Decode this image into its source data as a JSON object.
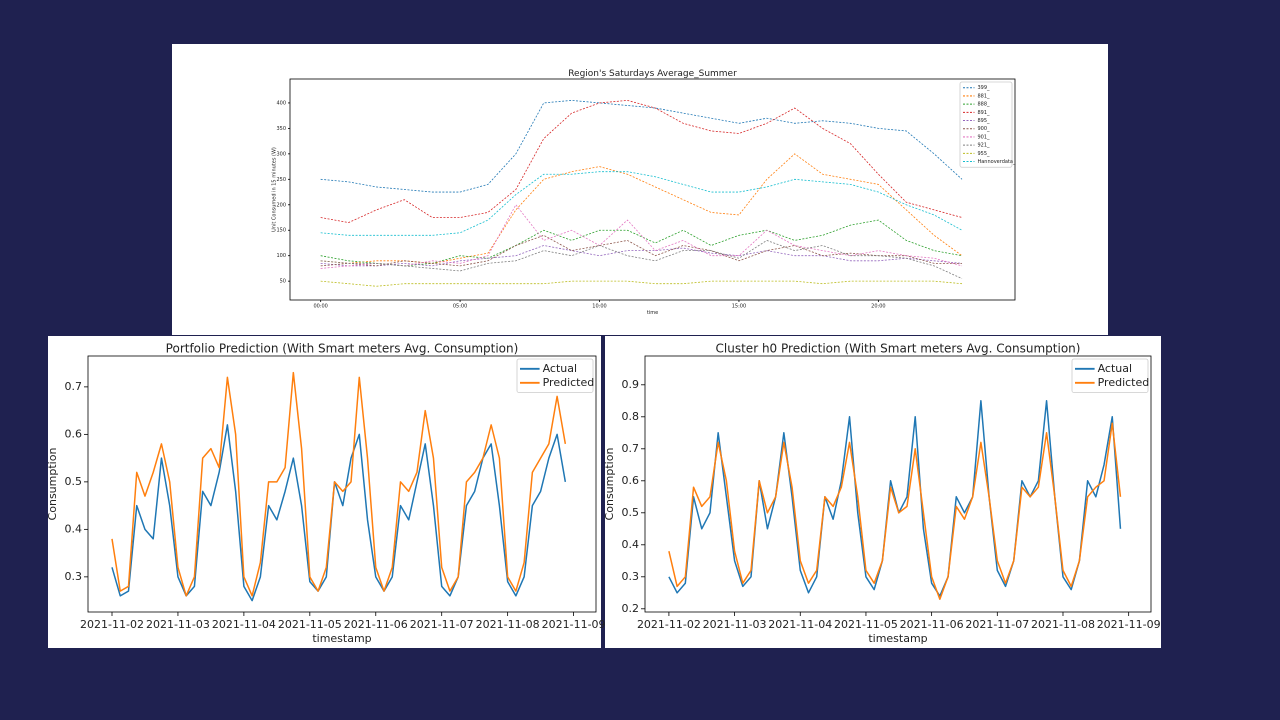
{
  "chart_data": [
    {
      "type": "line",
      "title": "Region's Saturdays Average_Summer",
      "xlabel": "time",
      "ylabel": "Unit Consumed in 15 minutes (W)",
      "linestyle": "dashed",
      "grid": false,
      "legend": "upper right",
      "x": [
        0,
        1,
        2,
        3,
        4,
        5,
        6,
        7,
        8,
        9,
        10,
        11,
        12,
        13,
        14,
        15,
        16,
        17,
        18,
        19,
        20,
        21,
        22,
        23
      ],
      "xlim": [
        -1.1,
        24.9
      ],
      "xticks": [
        {
          "value": 0,
          "label": "00:00"
        },
        {
          "value": 5,
          "label": "05:00"
        },
        {
          "value": 10,
          "label": "10:00"
        },
        {
          "value": 15,
          "label": "15:00"
        },
        {
          "value": 20,
          "label": "20:00"
        }
      ],
      "ylim": [
        13,
        447
      ],
      "yticks": [
        50,
        100,
        150,
        200,
        250,
        300,
        350,
        400
      ],
      "series": [
        {
          "name": "399_",
          "color": "#1f77b4",
          "values": [
            250,
            245,
            235,
            230,
            225,
            225,
            240,
            300,
            400,
            405,
            400,
            395,
            390,
            380,
            370,
            360,
            370,
            360,
            365,
            360,
            350,
            345,
            300,
            250
          ]
        },
        {
          "name": "881_",
          "color": "#ff7f0e",
          "values": [
            90,
            85,
            90,
            90,
            85,
            95,
            105,
            190,
            250,
            265,
            275,
            260,
            235,
            210,
            185,
            180,
            250,
            300,
            260,
            250,
            240,
            190,
            140,
            100
          ]
        },
        {
          "name": "888_",
          "color": "#2ca02c",
          "values": [
            100,
            90,
            85,
            80,
            85,
            100,
            95,
            120,
            150,
            130,
            150,
            150,
            125,
            150,
            120,
            140,
            150,
            130,
            140,
            160,
            170,
            130,
            110,
            100
          ]
        },
        {
          "name": "891_",
          "color": "#d62728",
          "values": [
            175,
            165,
            190,
            210,
            175,
            175,
            185,
            230,
            330,
            380,
            400,
            405,
            390,
            360,
            345,
            340,
            360,
            390,
            350,
            320,
            260,
            205,
            190,
            175
          ]
        },
        {
          "name": "895_",
          "color": "#9467bd",
          "values": [
            85,
            80,
            80,
            85,
            80,
            90,
            95,
            100,
            120,
            110,
            100,
            110,
            110,
            115,
            105,
            100,
            110,
            100,
            100,
            90,
            90,
            95,
            90,
            85
          ]
        },
        {
          "name": "900_",
          "color": "#8c564b",
          "values": [
            80,
            85,
            80,
            90,
            85,
            80,
            90,
            120,
            140,
            110,
            120,
            130,
            100,
            120,
            110,
            90,
            110,
            120,
            100,
            105,
            100,
            100,
            85,
            85
          ]
        },
        {
          "name": "901_",
          "color": "#e377c2",
          "values": [
            75,
            80,
            85,
            80,
            90,
            85,
            100,
            200,
            130,
            150,
            120,
            170,
            110,
            130,
            100,
            100,
            150,
            120,
            110,
            100,
            110,
            100,
            95,
            80
          ]
        },
        {
          "name": "921_",
          "color": "#7f7f7f",
          "values": [
            90,
            85,
            85,
            80,
            75,
            70,
            85,
            90,
            110,
            100,
            120,
            100,
            90,
            110,
            110,
            95,
            130,
            110,
            120,
            100,
            100,
            95,
            80,
            55
          ]
        },
        {
          "name": "955_",
          "color": "#bcbd22",
          "values": [
            50,
            45,
            40,
            45,
            45,
            45,
            45,
            45,
            45,
            50,
            50,
            50,
            45,
            45,
            50,
            50,
            50,
            50,
            45,
            50,
            50,
            50,
            50,
            45
          ]
        },
        {
          "name": "Hannoverdata_",
          "color": "#17becf",
          "values": [
            145,
            140,
            140,
            140,
            140,
            145,
            170,
            220,
            260,
            260,
            265,
            265,
            255,
            240,
            225,
            225,
            235,
            250,
            245,
            240,
            225,
            200,
            180,
            150
          ]
        }
      ]
    },
    {
      "type": "line",
      "title": "Portfolio Prediction (With Smart meters Avg. Consumption)",
      "xlabel": "timestamp",
      "ylabel": "Consumption",
      "linestyle": "solid",
      "grid": false,
      "legend": "upper right",
      "x": [
        0,
        0.125,
        0.25,
        0.375,
        0.5,
        0.625,
        0.75,
        0.875,
        1,
        1.125,
        1.25,
        1.375,
        1.5,
        1.625,
        1.75,
        1.875,
        2,
        2.125,
        2.25,
        2.375,
        2.5,
        2.625,
        2.75,
        2.875,
        3,
        3.125,
        3.25,
        3.375,
        3.5,
        3.625,
        3.75,
        3.875,
        4,
        4.125,
        4.25,
        4.375,
        4.5,
        4.625,
        4.75,
        4.875,
        5,
        5.125,
        5.25,
        5.375,
        5.5,
        5.625,
        5.75,
        5.875,
        6,
        6.125,
        6.25,
        6.375,
        6.5,
        6.625,
        6.75,
        6.875
      ],
      "xlim": [
        -0.364,
        7.34
      ],
      "xticks": [
        {
          "value": 0,
          "label": "2021-11-02"
        },
        {
          "value": 1,
          "label": "2021-11-03"
        },
        {
          "value": 2,
          "label": "2021-11-04"
        },
        {
          "value": 3,
          "label": "2021-11-05"
        },
        {
          "value": 4,
          "label": "2021-11-06"
        },
        {
          "value": 5,
          "label": "2021-11-07"
        },
        {
          "value": 6,
          "label": "2021-11-08"
        },
        {
          "value": 7,
          "label": "2021-11-09"
        }
      ],
      "ylim": [
        0.226,
        0.765
      ],
      "yticks": [
        0.3,
        0.4,
        0.5,
        0.6,
        0.7
      ],
      "series": [
        {
          "name": "Actual",
          "color": "#1f77b4",
          "values": [
            0.32,
            0.26,
            0.27,
            0.45,
            0.4,
            0.38,
            0.55,
            0.45,
            0.3,
            0.26,
            0.28,
            0.48,
            0.45,
            0.52,
            0.62,
            0.48,
            0.28,
            0.25,
            0.3,
            0.45,
            0.42,
            0.48,
            0.55,
            0.45,
            0.29,
            0.27,
            0.3,
            0.5,
            0.45,
            0.55,
            0.6,
            0.42,
            0.3,
            0.27,
            0.3,
            0.45,
            0.42,
            0.5,
            0.58,
            0.45,
            0.28,
            0.26,
            0.3,
            0.45,
            0.48,
            0.55,
            0.58,
            0.45,
            0.29,
            0.26,
            0.3,
            0.45,
            0.48,
            0.55,
            0.6,
            0.5
          ]
        },
        {
          "name": "Predicted",
          "color": "#ff7f0e",
          "values": [
            0.38,
            0.27,
            0.28,
            0.52,
            0.47,
            0.52,
            0.58,
            0.5,
            0.32,
            0.26,
            0.3,
            0.55,
            0.57,
            0.53,
            0.72,
            0.6,
            0.3,
            0.26,
            0.33,
            0.5,
            0.5,
            0.53,
            0.73,
            0.57,
            0.3,
            0.27,
            0.32,
            0.5,
            0.48,
            0.5,
            0.72,
            0.55,
            0.32,
            0.27,
            0.32,
            0.5,
            0.48,
            0.52,
            0.65,
            0.55,
            0.32,
            0.27,
            0.3,
            0.5,
            0.52,
            0.55,
            0.62,
            0.55,
            0.3,
            0.27,
            0.33,
            0.52,
            0.55,
            0.58,
            0.68,
            0.58
          ]
        }
      ]
    },
    {
      "type": "line",
      "title": "Cluster h0 Prediction (With Smart meters Avg. Consumption)",
      "xlabel": "timestamp",
      "ylabel": "Consumption",
      "linestyle": "solid",
      "grid": false,
      "legend": "upper right",
      "x": [
        0,
        0.125,
        0.25,
        0.375,
        0.5,
        0.625,
        0.75,
        0.875,
        1,
        1.125,
        1.25,
        1.375,
        1.5,
        1.625,
        1.75,
        1.875,
        2,
        2.125,
        2.25,
        2.375,
        2.5,
        2.625,
        2.75,
        2.875,
        3,
        3.125,
        3.25,
        3.375,
        3.5,
        3.625,
        3.75,
        3.875,
        4,
        4.125,
        4.25,
        4.375,
        4.5,
        4.625,
        4.75,
        4.875,
        5,
        5.125,
        5.25,
        5.375,
        5.5,
        5.625,
        5.75,
        5.875,
        6,
        6.125,
        6.25,
        6.375,
        6.5,
        6.625,
        6.75,
        6.875
      ],
      "xlim": [
        -0.364,
        7.34
      ],
      "xticks": [
        {
          "value": 0,
          "label": "2021-11-02"
        },
        {
          "value": 1,
          "label": "2021-11-03"
        },
        {
          "value": 2,
          "label": "2021-11-04"
        },
        {
          "value": 3,
          "label": "2021-11-05"
        },
        {
          "value": 4,
          "label": "2021-11-06"
        },
        {
          "value": 5,
          "label": "2021-11-07"
        },
        {
          "value": 6,
          "label": "2021-11-08"
        },
        {
          "value": 7,
          "label": "2021-11-09"
        }
      ],
      "ylim": [
        0.19,
        0.99
      ],
      "yticks": [
        0.2,
        0.3,
        0.4,
        0.5,
        0.6,
        0.7,
        0.8,
        0.9
      ],
      "series": [
        {
          "name": "Actual",
          "color": "#1f77b4",
          "values": [
            0.3,
            0.25,
            0.28,
            0.55,
            0.45,
            0.5,
            0.75,
            0.55,
            0.35,
            0.27,
            0.3,
            0.6,
            0.45,
            0.55,
            0.75,
            0.55,
            0.32,
            0.25,
            0.3,
            0.55,
            0.48,
            0.6,
            0.8,
            0.5,
            0.3,
            0.26,
            0.35,
            0.6,
            0.5,
            0.55,
            0.8,
            0.45,
            0.28,
            0.24,
            0.3,
            0.55,
            0.5,
            0.55,
            0.85,
            0.55,
            0.32,
            0.27,
            0.35,
            0.6,
            0.55,
            0.6,
            0.85,
            0.55,
            0.3,
            0.26,
            0.35,
            0.6,
            0.55,
            0.65,
            0.8,
            0.45
          ]
        },
        {
          "name": "Predicted",
          "color": "#ff7f0e",
          "values": [
            0.38,
            0.27,
            0.3,
            0.58,
            0.52,
            0.55,
            0.72,
            0.6,
            0.38,
            0.28,
            0.32,
            0.6,
            0.5,
            0.55,
            0.72,
            0.58,
            0.35,
            0.28,
            0.32,
            0.55,
            0.52,
            0.58,
            0.72,
            0.55,
            0.32,
            0.28,
            0.35,
            0.58,
            0.5,
            0.52,
            0.7,
            0.5,
            0.3,
            0.23,
            0.3,
            0.52,
            0.48,
            0.55,
            0.72,
            0.55,
            0.35,
            0.28,
            0.35,
            0.58,
            0.55,
            0.58,
            0.75,
            0.55,
            0.32,
            0.27,
            0.35,
            0.55,
            0.58,
            0.6,
            0.78,
            0.55
          ]
        }
      ]
    }
  ]
}
